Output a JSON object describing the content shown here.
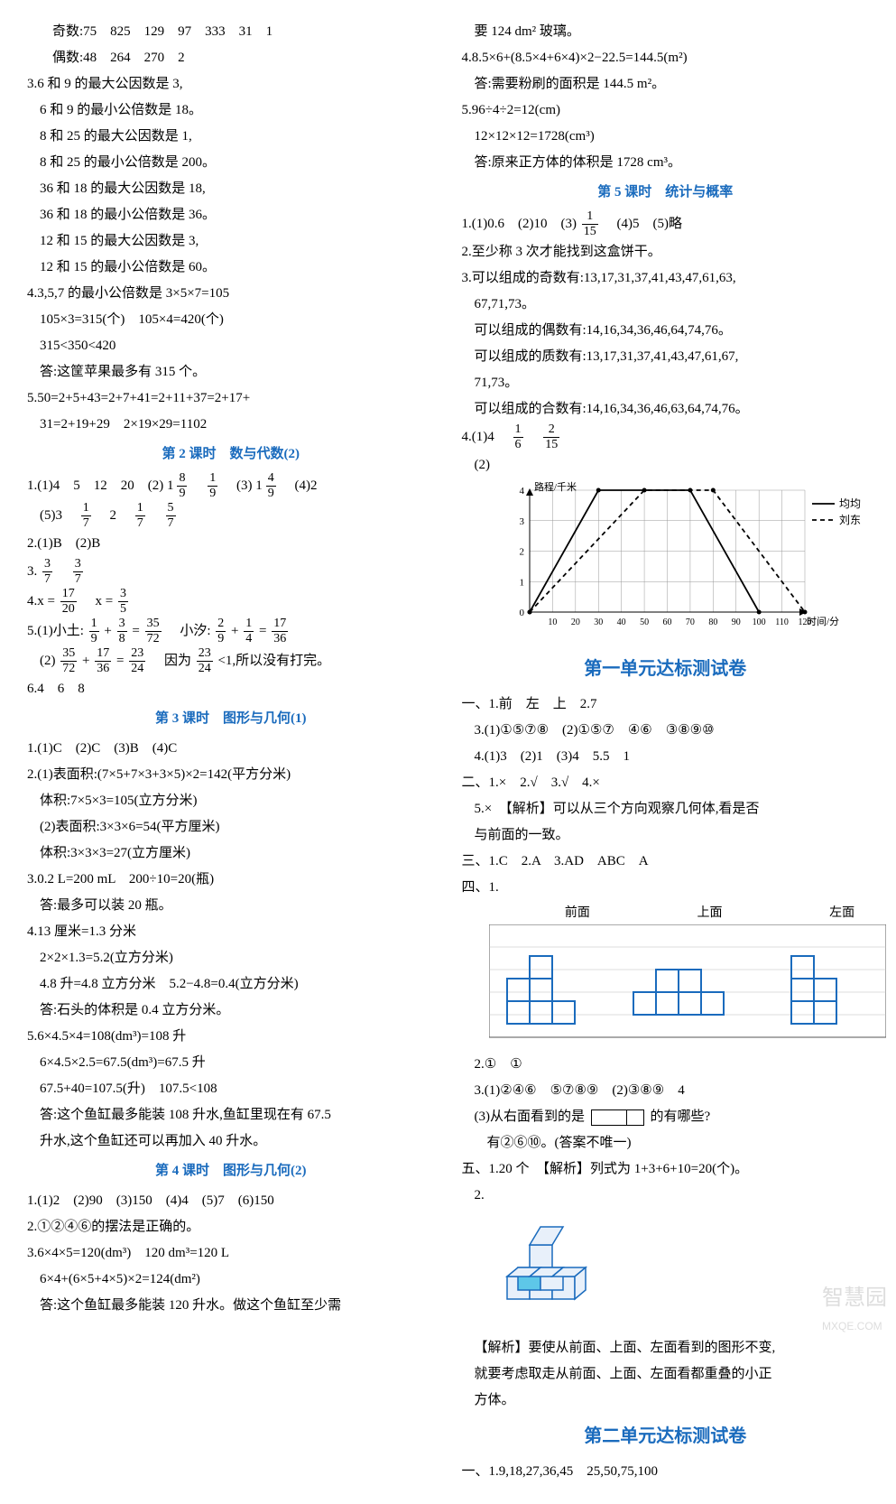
{
  "left": {
    "l1": "奇数:75　825　129　97　333　31　1",
    "l2": "偶数:48　264　270　2",
    "l3": "3.6 和 9 的最大公因数是 3,",
    "l4": "6 和 9 的最小公倍数是 18。",
    "l5": "8 和 25 的最大公因数是 1,",
    "l6": "8 和 25 的最小公倍数是 200。",
    "l7": "36 和 18 的最大公因数是 18,",
    "l8": "36 和 18 的最小公倍数是 36。",
    "l9": "12 和 15 的最大公因数是 3,",
    "l10": "12 和 15 的最小公倍数是 60。",
    "l11": "4.3,5,7 的最小公倍数是 3×5×7=105",
    "l12": "105×3=315(个)　105×4=420(个)",
    "l13": "315<350<420",
    "l14": "答:这筐苹果最多有 315 个。",
    "l15": "5.50=2+5+43=2+7+41=2+11+37=2+17+",
    "l16": "31=2+19+29　2×19×29=1102",
    "t1": "第 2 课时　数与代数(2)",
    "l17a": "1.(1)4　5　12　20　(2)",
    "l17b": "　(3)",
    "l17c": "　(4)2",
    "l18a": "(5)3　",
    "l18b": "　2　",
    "l19": "2.(1)B　(2)B",
    "l20": "3.",
    "l21a": "4.x = ",
    "l21b": "　x = ",
    "l22a": "5.(1)小土:",
    "l22b": " + ",
    "l22c": " = ",
    "l22d": "　小汐:",
    "l22e": " + ",
    "l22f": " = ",
    "l23a": "(2)",
    "l23b": " + ",
    "l23c": " = ",
    "l23d": "　因为",
    "l23e": "<1,所以没有打完。",
    "l24": "6.4　6　8",
    "t2": "第 3 课时　图形与几何(1)",
    "l25": "1.(1)C　(2)C　(3)B　(4)C",
    "l26": "2.(1)表面积:(7×5+7×3+3×5)×2=142(平方分米)",
    "l27": "体积:7×5×3=105(立方分米)",
    "l28": "(2)表面积:3×3×6=54(平方厘米)",
    "l29": "体积:3×3×3=27(立方厘米)",
    "l30": "3.0.2 L=200 mL　200÷10=20(瓶)",
    "l31": "答:最多可以装 20 瓶。",
    "l32": "4.13 厘米=1.3 分米",
    "l33": "2×2×1.3=5.2(立方分米)",
    "l34": "4.8 升=4.8 立方分米　5.2−4.8=0.4(立方分米)",
    "l35": "答:石头的体积是 0.4 立方分米。",
    "l36": "5.6×4.5×4=108(dm³)=108 升",
    "l37": "6×4.5×2.5=67.5(dm³)=67.5 升",
    "l38": "67.5+40=107.5(升)　107.5<108",
    "l39": "答:这个鱼缸最多能装 108 升水,鱼缸里现在有 67.5",
    "l40": "升水,这个鱼缸还可以再加入 40 升水。",
    "t3": "第 4 课时　图形与几何(2)",
    "l41": "1.(1)2　(2)90　(3)150　(4)4　(5)7　(6)150",
    "l42": "2.①②④⑥的摆法是正确的。",
    "l43": "3.6×4×5=120(dm³)　120 dm³=120 L",
    "l44": "6×4+(6×5+4×5)×2=124(dm²)",
    "l45": "答:这个鱼缸最多能装 120 升水。做这个鱼缸至少需"
  },
  "right": {
    "r1": "要 124 dm² 玻璃。",
    "r2": "4.8.5×6+(8.5×4+6×4)×2−22.5=144.5(m²)",
    "r3": "答:需要粉刷的面积是 144.5 m²。",
    "r4": "5.96÷4÷2=12(cm)",
    "r5": "12×12×12=1728(cm³)",
    "r6": "答:原来正方体的体积是 1728 cm³。",
    "t4": "第 5 课时　统计与概率",
    "r7a": "1.(1)0.6　(2)10　(3)",
    "r7b": "　(4)5　(5)略",
    "r8": "2.至少称 3 次才能找到这盒饼干。",
    "r9": "3.可以组成的奇数有:13,17,31,37,41,43,47,61,63,",
    "r10": "67,71,73。",
    "r11": "可以组成的偶数有:14,16,34,36,46,64,74,76。",
    "r12": "可以组成的质数有:13,17,31,37,41,43,47,61,67,",
    "r13": "71,73。",
    "r14": "可以组成的合数有:14,16,34,36,46,63,64,74,76。",
    "r15a": "4.(1)4　",
    "chart": {
      "ylabel": "路程/千米",
      "xlabel": "时间/分",
      "legend1": "均均",
      "legend2": "刘东",
      "ymax": 4,
      "xticks": [
        10,
        20,
        30,
        40,
        50,
        60,
        70,
        80,
        90,
        100,
        110,
        120
      ],
      "lines": {
        "solid": [
          [
            0,
            0
          ],
          [
            30,
            4
          ],
          [
            70,
            4
          ],
          [
            100,
            0
          ]
        ],
        "dashed": [
          [
            0,
            0
          ],
          [
            50,
            4
          ],
          [
            80,
            4
          ],
          [
            120,
            0
          ]
        ]
      },
      "colors": {
        "grid": "#999",
        "solid": "#000",
        "dashed": "#000",
        "bg": "#fff"
      }
    },
    "bt1": "第一单元达标测试卷",
    "r16": "一、1.前　左　上　2.7",
    "r17": "3.(1)①⑤⑦⑧　(2)①⑤⑦　④⑥　③⑧⑨⑩",
    "r18": "4.(1)3　(2)1　(3)4　5.5　1",
    "r19": "二、1.×　2.√　3.√　4.×",
    "r20": "5.×　【解析】可以从三个方向观察几何体,看是否",
    "r21": "与前面的一致。",
    "r22": "三、1.C　2.A　3.AD　ABC　A",
    "r23": "四、1.",
    "views": {
      "labels": [
        "前面",
        "上面",
        "左面"
      ]
    },
    "r24": "2.①　①",
    "r25": "3.(1)②④⑥　⑤⑦⑧⑨　(2)③⑧⑨　4",
    "r26a": "(3)从右面看到的是",
    "r26b": "的有哪些?",
    "r27": "有②⑥⑩。(答案不唯一)",
    "r28": "五、1.20 个　【解析】列式为 1+3+6+10=20(个)。",
    "r29": "2.",
    "r30": "【解析】要使从前面、上面、左面看到的图形不变,",
    "r31": "就要考虑取走从前面、上面、左面看都重叠的小正",
    "r32": "方体。",
    "bt2": "第二单元达标测试卷",
    "r33": "一、1.9,18,27,36,45　25,50,75,100"
  },
  "fractions": {
    "f_1_8_9": {
      "w": "1",
      "n": "8",
      "d": "9"
    },
    "f_1_9": {
      "n": "1",
      "d": "9"
    },
    "f_1_4_9": {
      "w": "1",
      "n": "4",
      "d": "9"
    },
    "f_1_7": {
      "n": "1",
      "d": "7"
    },
    "f_5_7": {
      "n": "5",
      "d": "7"
    },
    "f_3_7": {
      "n": "3",
      "d": "7"
    },
    "f_17_20": {
      "n": "17",
      "d": "20"
    },
    "f_3_5": {
      "n": "3",
      "d": "5"
    },
    "f_3_8": {
      "n": "3",
      "d": "8"
    },
    "f_35_72": {
      "n": "35",
      "d": "72"
    },
    "f_2_9": {
      "n": "2",
      "d": "9"
    },
    "f_1_4": {
      "n": "1",
      "d": "4"
    },
    "f_17_36": {
      "n": "17",
      "d": "36"
    },
    "f_23_24": {
      "n": "23",
      "d": "24"
    },
    "f_1_15": {
      "n": "1",
      "d": "15"
    },
    "f_1_6": {
      "n": "1",
      "d": "6"
    },
    "f_2_15": {
      "n": "2",
      "d": "15"
    }
  },
  "watermark": {
    "big": "智慧园",
    "small": "MXQE.COM"
  }
}
